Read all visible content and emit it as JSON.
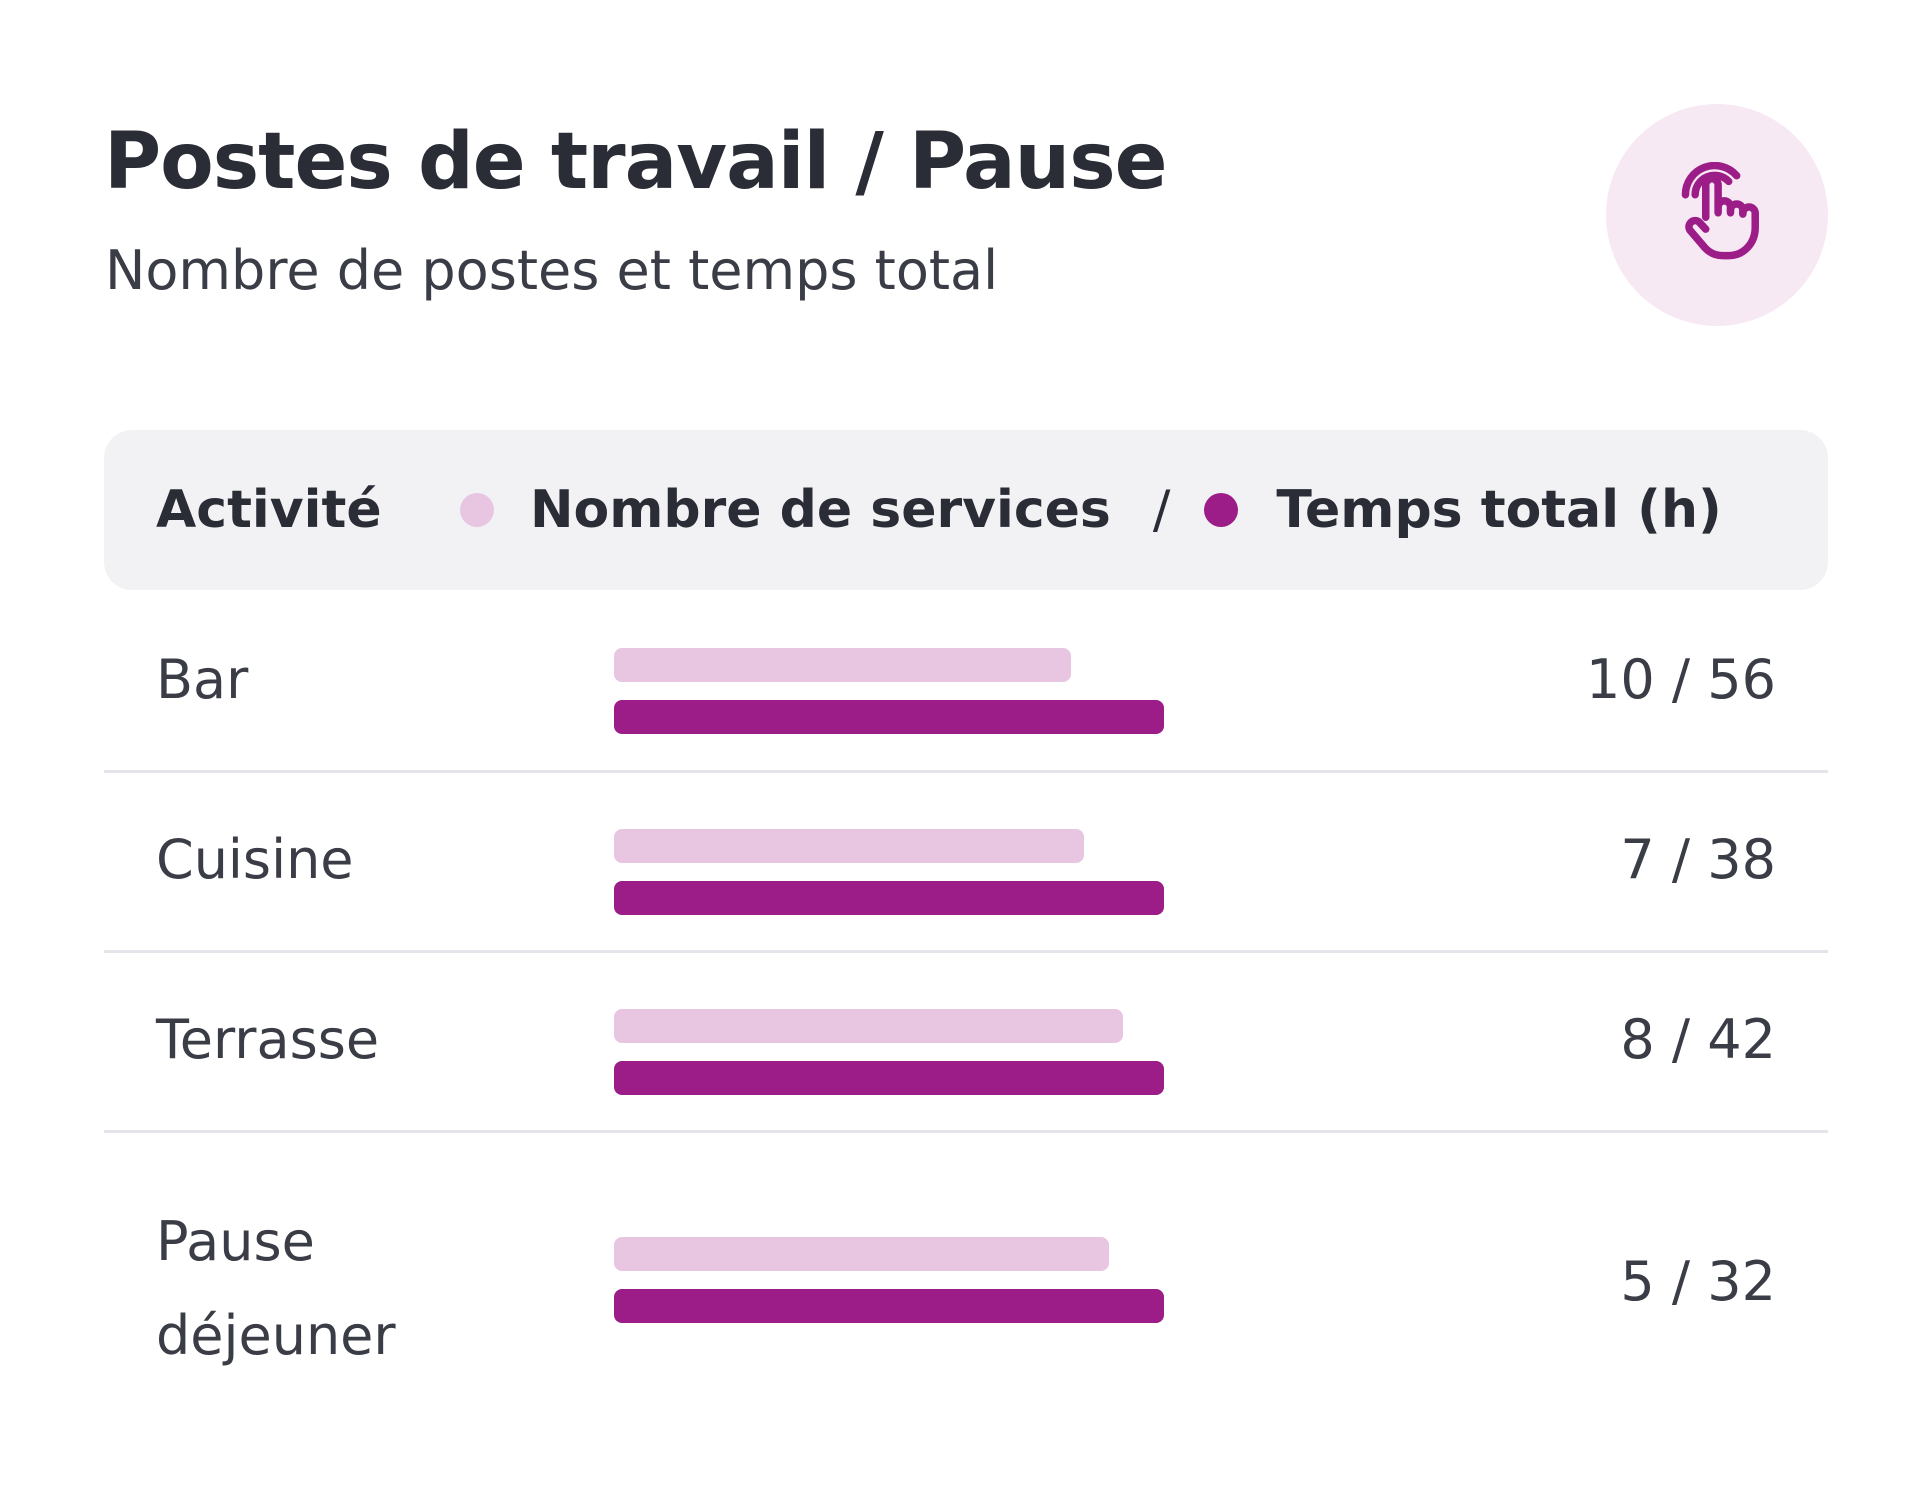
{
  "header": {
    "title": "Postes de travail / Pause",
    "subtitle": "Nombre de postes et temps total",
    "action_icon": "tap-hand-icon"
  },
  "table": {
    "column_activity": "Activité",
    "legend_services": "Nombre de services",
    "legend_separator": "/",
    "legend_time": "Temps total (h)"
  },
  "colors": {
    "services": "#e8c6e2",
    "time": "#9c1d87",
    "button_bg": "#f7e9f3"
  },
  "rows": [
    {
      "label": "Bar",
      "services": 10,
      "hours": 56,
      "value_text": "10 / 56",
      "services_fraction": 0.83,
      "hours_fraction": 1.0
    },
    {
      "label": "Cuisine",
      "services": 7,
      "hours": 38,
      "value_text": "7 / 38",
      "services_fraction": 0.855,
      "hours_fraction": 1.0
    },
    {
      "label": "Terrasse",
      "services": 8,
      "hours": 42,
      "value_text": "8 / 42",
      "services_fraction": 0.925,
      "hours_fraction": 1.0
    },
    {
      "label": "Pause déjeuner",
      "services": 5,
      "hours": 32,
      "value_text": "5 / 32",
      "services_fraction": 0.9,
      "hours_fraction": 1.0
    }
  ]
}
